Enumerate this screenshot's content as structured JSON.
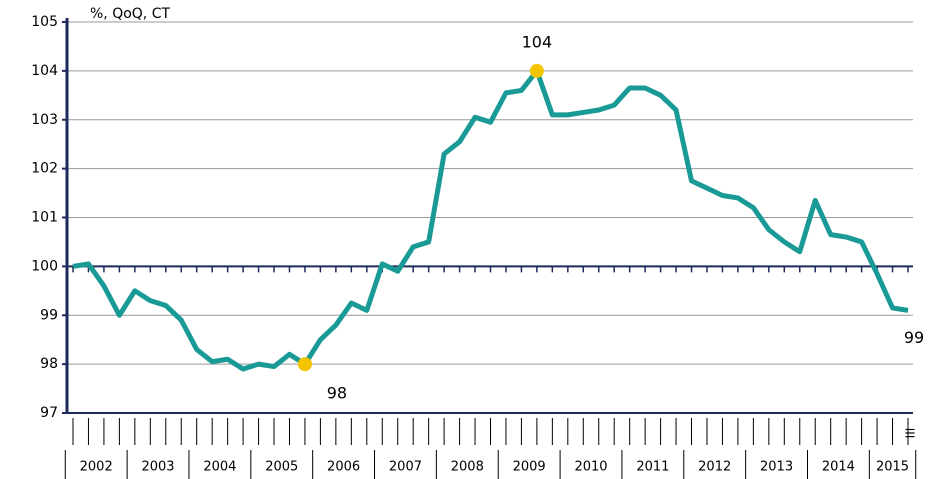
{
  "chart_data": {
    "type": "line",
    "y_label": "%, QoQ, CT",
    "ylim": [
      97,
      105
    ],
    "yticks": [
      97,
      98,
      99,
      100,
      101,
      102,
      103,
      104,
      105
    ],
    "grid": true,
    "baseline": 100,
    "years": [
      "2002",
      "2003",
      "2004",
      "2005",
      "2006",
      "2007",
      "2008",
      "2009",
      "2010",
      "2011",
      "2012",
      "2013",
      "2014",
      "2015"
    ],
    "categories": [
      null,
      null,
      null,
      null,
      null,
      null,
      null,
      null,
      null,
      null,
      null,
      null,
      null,
      null,
      null,
      null,
      null,
      null,
      null,
      null,
      null,
      null,
      null,
      null,
      null,
      null,
      null,
      null,
      null,
      null,
      null,
      null,
      null,
      null,
      null,
      null,
      null,
      null,
      null,
      null,
      null,
      null,
      null,
      null,
      null,
      null,
      null,
      null,
      null,
      null,
      null,
      null,
      null,
      null,
      "III"
    ],
    "series": [
      {
        "color": "#1a9a96",
        "values": [
          100,
          100.05,
          99.6,
          99.0,
          99.5,
          99.3,
          99.2,
          98.9,
          98.3,
          98.05,
          98.1,
          97.9,
          98.0,
          97.95,
          98.2,
          98.0,
          98.5,
          98.8,
          99.25,
          99.1,
          100.05,
          99.9,
          100.4,
          100.5,
          102.3,
          102.55,
          103.05,
          102.95,
          103.55,
          103.6,
          104.0,
          103.1,
          103.1,
          103.15,
          103.2,
          103.3,
          103.65,
          103.65,
          103.5,
          103.2,
          101.75,
          101.6,
          101.45,
          101.4,
          101.2,
          100.75,
          100.5,
          100.3,
          101.35,
          100.65,
          100.6,
          100.5,
          99.85,
          99.15,
          99.1
        ],
        "value_labels": [
          null,
          null,
          null,
          null,
          null,
          null,
          null,
          null,
          null,
          null,
          null,
          null,
          null,
          null,
          null,
          null,
          null,
          null,
          null,
          null,
          null,
          null,
          null,
          null,
          null,
          null,
          null,
          null,
          null,
          null,
          null,
          null,
          null,
          null,
          null,
          null,
          null,
          null,
          null,
          null,
          null,
          null,
          null,
          null,
          null,
          null,
          null,
          null,
          null,
          null,
          null,
          null,
          null,
          null,
          "99"
        ]
      },
      {
        "color": "#f5c400",
        "values": [
          null,
          null,
          null,
          null,
          null,
          null,
          null,
          null,
          null,
          null,
          null,
          null,
          null,
          null,
          null,
          98.0,
          null,
          null,
          null,
          null,
          null,
          null,
          null,
          null,
          null,
          null,
          null,
          null,
          null,
          null,
          104.0,
          null,
          null,
          null,
          null,
          null,
          null,
          null,
          null,
          null,
          null,
          null,
          null,
          null,
          null,
          null,
          null,
          null,
          null,
          null,
          null,
          null,
          null,
          null,
          null
        ],
        "value_labels": [
          null,
          null,
          null,
          null,
          null,
          null,
          null,
          null,
          null,
          null,
          null,
          null,
          null,
          null,
          null,
          "98",
          null,
          null,
          null,
          null,
          null,
          null,
          null,
          null,
          null,
          null,
          null,
          null,
          null,
          null,
          "104",
          null,
          null,
          null,
          null,
          null,
          null,
          null,
          null,
          null,
          null,
          null,
          null,
          null,
          null,
          null,
          null,
          null,
          null,
          null,
          null,
          null,
          null,
          null,
          null
        ]
      }
    ]
  }
}
